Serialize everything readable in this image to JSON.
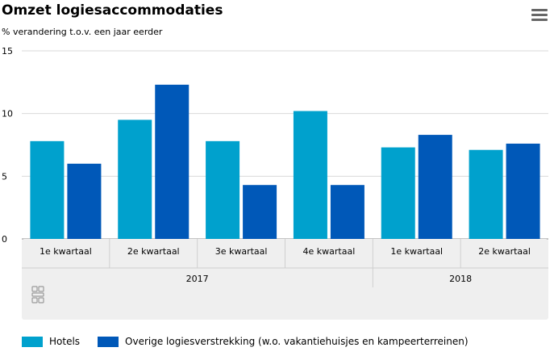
{
  "header": {
    "title": "Omzet logiesaccommodaties",
    "subtitle": "% verandering t.o.v. een jaar eerder"
  },
  "toolbar": {
    "menu_icon": "hamburger-menu-icon"
  },
  "watermark": {
    "icon": "cbs-logo-icon"
  },
  "chart_data": {
    "type": "bar",
    "title": "Omzet logiesaccommodaties",
    "subtitle": "% verandering t.o.v. een jaar eerder",
    "categories": [
      "1e kwartaal",
      "2e kwartaal",
      "3e kwartaal",
      "4e kwartaal",
      "1e kwartaal",
      "2e kwartaal"
    ],
    "groups": [
      {
        "label": "2017",
        "span": 4
      },
      {
        "label": "2018",
        "span": 2
      }
    ],
    "series": [
      {
        "name": "Hotels",
        "color": "#00a1cd",
        "values": [
          7.8,
          9.5,
          7.8,
          10.2,
          7.3,
          7.1
        ]
      },
      {
        "name": "Overige logiesverstrekking (w.o. vakantiehuisjes en kampeerterreinen)",
        "color": "#0058b8",
        "values": [
          6.0,
          12.3,
          4.3,
          4.3,
          8.3,
          7.6
        ]
      }
    ],
    "yticks": [
      0,
      5,
      10,
      15
    ],
    "ylim": [
      0,
      15
    ],
    "grid": true,
    "legend_position": "bottom-left"
  }
}
